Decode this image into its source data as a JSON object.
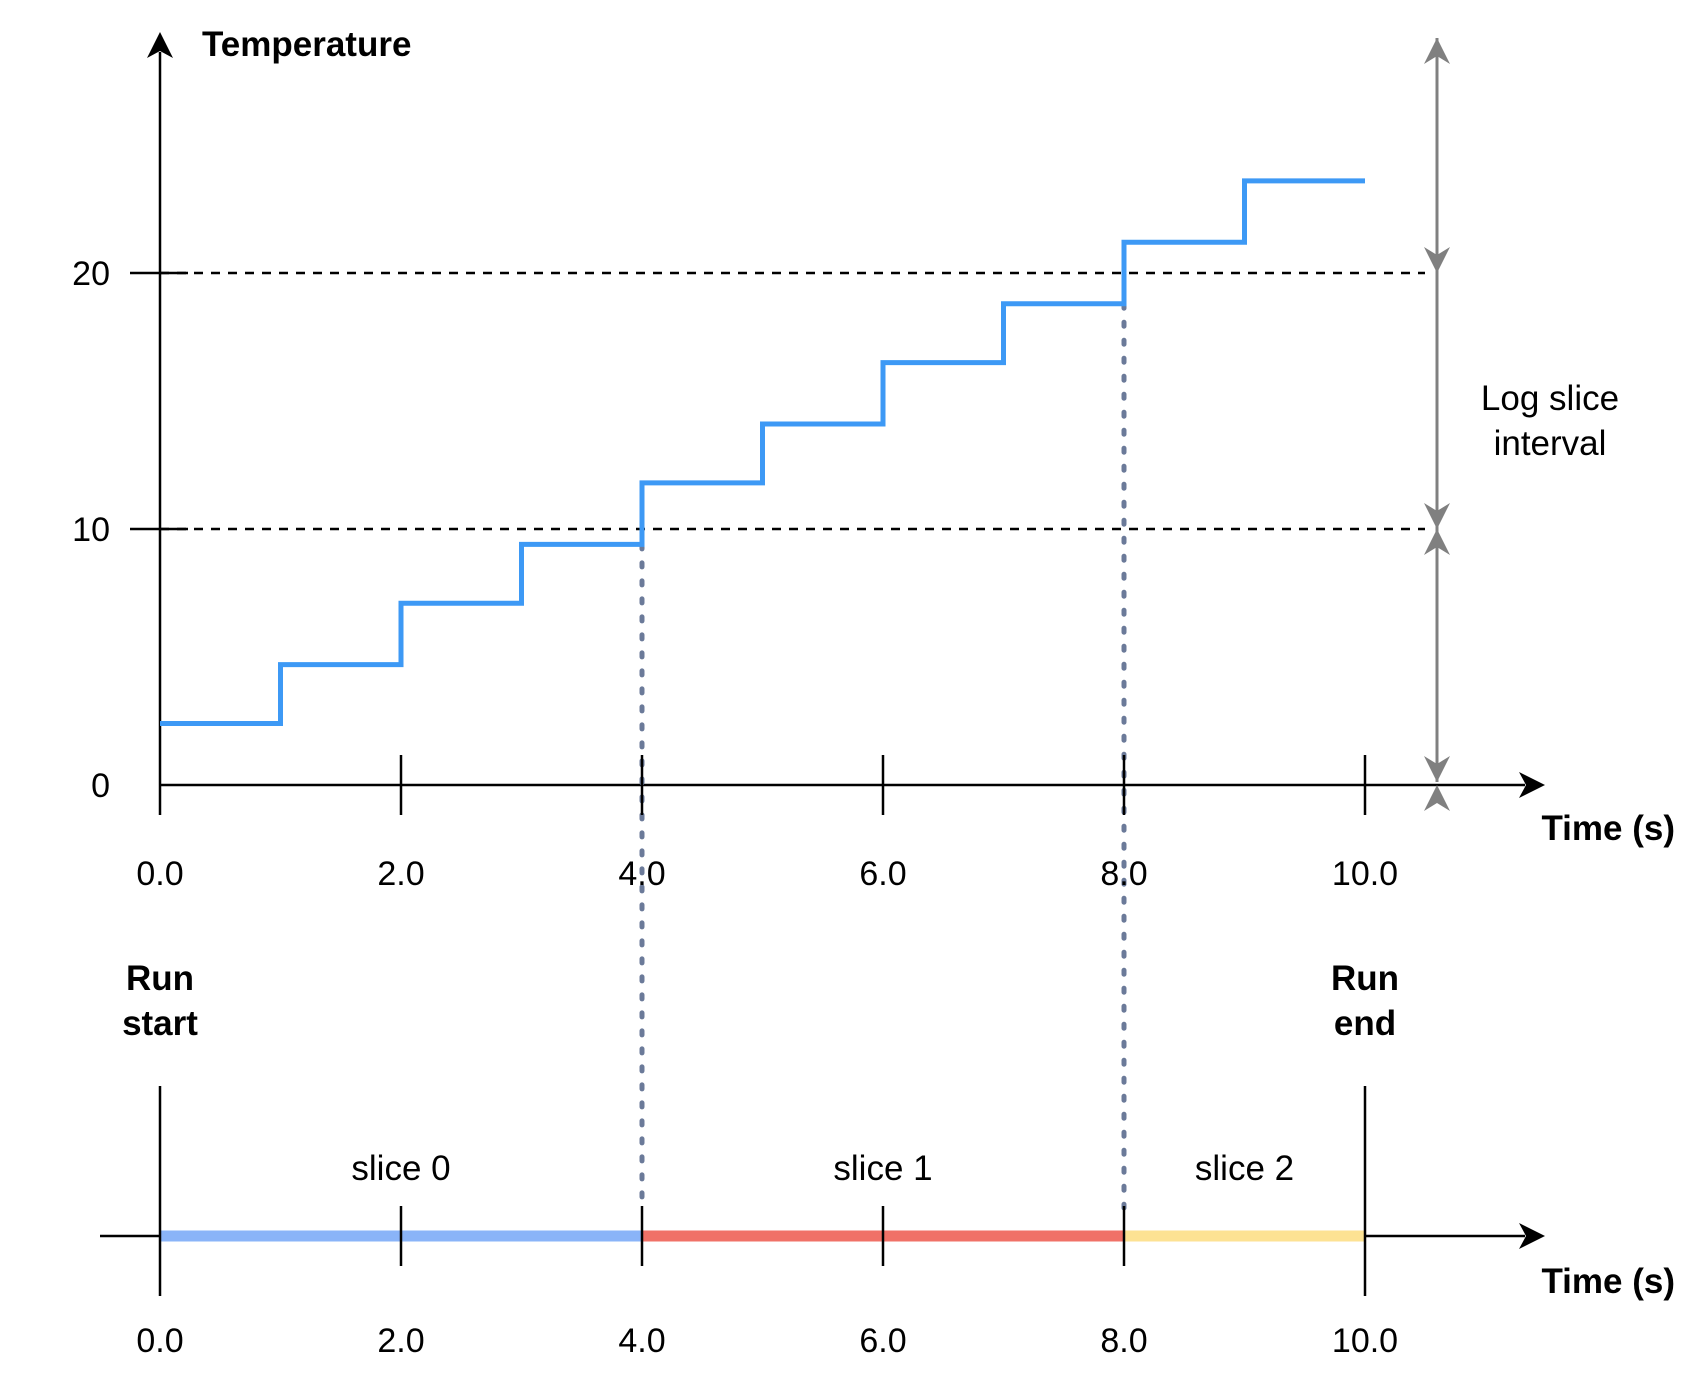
{
  "chart_data": [
    {
      "type": "line",
      "step": true,
      "title": "",
      "ylabel": "Temperature",
      "xlabel": "Time (s)",
      "xlim": [
        0,
        10
      ],
      "ylim": [
        0,
        20
      ],
      "x_ticks": [
        "0.0",
        "2.0",
        "4.0",
        "6.0",
        "8.0",
        "10.0"
      ],
      "y_ticks": [
        "0",
        "10",
        "20"
      ],
      "series": [
        {
          "color": "#3d99f5",
          "x": [
            0,
            1,
            2,
            3,
            4,
            5,
            6,
            7,
            8,
            9,
            10
          ],
          "y": [
            2.4,
            4.7,
            7.1,
            9.4,
            11.8,
            14.1,
            16.5,
            18.8,
            21.2,
            23.6,
            23.6
          ]
        }
      ],
      "reference_lines": [
        {
          "axis": "y",
          "value": 10,
          "style": "dashed"
        },
        {
          "axis": "y",
          "value": 20,
          "style": "dashed"
        },
        {
          "axis": "x",
          "value": 4,
          "style": "dotted"
        },
        {
          "axis": "x",
          "value": 8,
          "style": "dotted"
        }
      ],
      "annotation": {
        "label_lines": [
          "Log slice",
          "interval"
        ],
        "color": "#808080",
        "interval_bounds": [
          0,
          10,
          20
        ]
      }
    },
    {
      "type": "timeline",
      "xlabel": "Time (s)",
      "xlim": [
        0,
        10
      ],
      "x_ticks": [
        "0.0",
        "2.0",
        "4.0",
        "6.0",
        "8.0",
        "10.0"
      ],
      "run_start_lines": [
        "Run",
        "start"
      ],
      "run_end_lines": [
        "Run",
        "end"
      ],
      "slices": [
        {
          "label": "slice 0",
          "start": 0,
          "end": 4,
          "color": "#8ab4f8"
        },
        {
          "label": "slice 1",
          "start": 4,
          "end": 8,
          "color": "#f07167"
        },
        {
          "label": "slice 2",
          "start": 8,
          "end": 10,
          "color": "#fde293"
        }
      ]
    }
  ]
}
